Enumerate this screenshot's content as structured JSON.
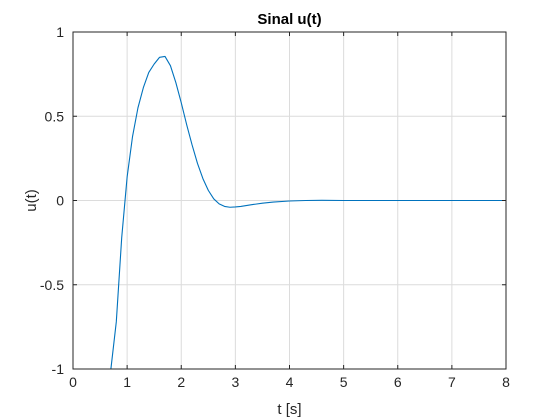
{
  "chart_data": {
    "type": "line",
    "title": "Sinal u(t)",
    "xlabel": "t [s]",
    "ylabel": "u(t)",
    "xlim": [
      0,
      8
    ],
    "ylim": [
      -1,
      1
    ],
    "xticks": [
      0,
      1,
      2,
      3,
      4,
      5,
      6,
      7,
      8
    ],
    "xtick_labels": [
      "0",
      "1",
      "2",
      "3",
      "4",
      "5",
      "6",
      "7",
      "8"
    ],
    "yticks": [
      -1,
      -0.5,
      0,
      0.5,
      1
    ],
    "ytick_labels": [
      "-1",
      "-0.5",
      "0",
      "0.5",
      "1"
    ],
    "grid": true,
    "series": [
      {
        "color": "#0072BD",
        "x": [
          0,
          0.5,
          0.7,
          0.8,
          0.9,
          1.0,
          1.1,
          1.2,
          1.3,
          1.4,
          1.5,
          1.6,
          1.7,
          1.8,
          1.9,
          2.0,
          2.1,
          2.2,
          2.3,
          2.4,
          2.5,
          2.6,
          2.7,
          2.8,
          2.9,
          3.0,
          3.1,
          3.2,
          3.3,
          3.5,
          3.7,
          4.0,
          4.3,
          4.6,
          5.0,
          6.0,
          7.0,
          8.0
        ],
        "y": [
          -1,
          -1,
          -1,
          -0.72,
          -0.22,
          0.14,
          0.38,
          0.55,
          0.67,
          0.76,
          0.81,
          0.85,
          0.855,
          0.8,
          0.7,
          0.58,
          0.45,
          0.33,
          0.22,
          0.13,
          0.06,
          0.01,
          -0.02,
          -0.035,
          -0.04,
          -0.038,
          -0.035,
          -0.03,
          -0.025,
          -0.016,
          -0.009,
          -0.003,
          0.0,
          0.001,
          0.0,
          0.0,
          0.0,
          0.0
        ]
      }
    ]
  }
}
